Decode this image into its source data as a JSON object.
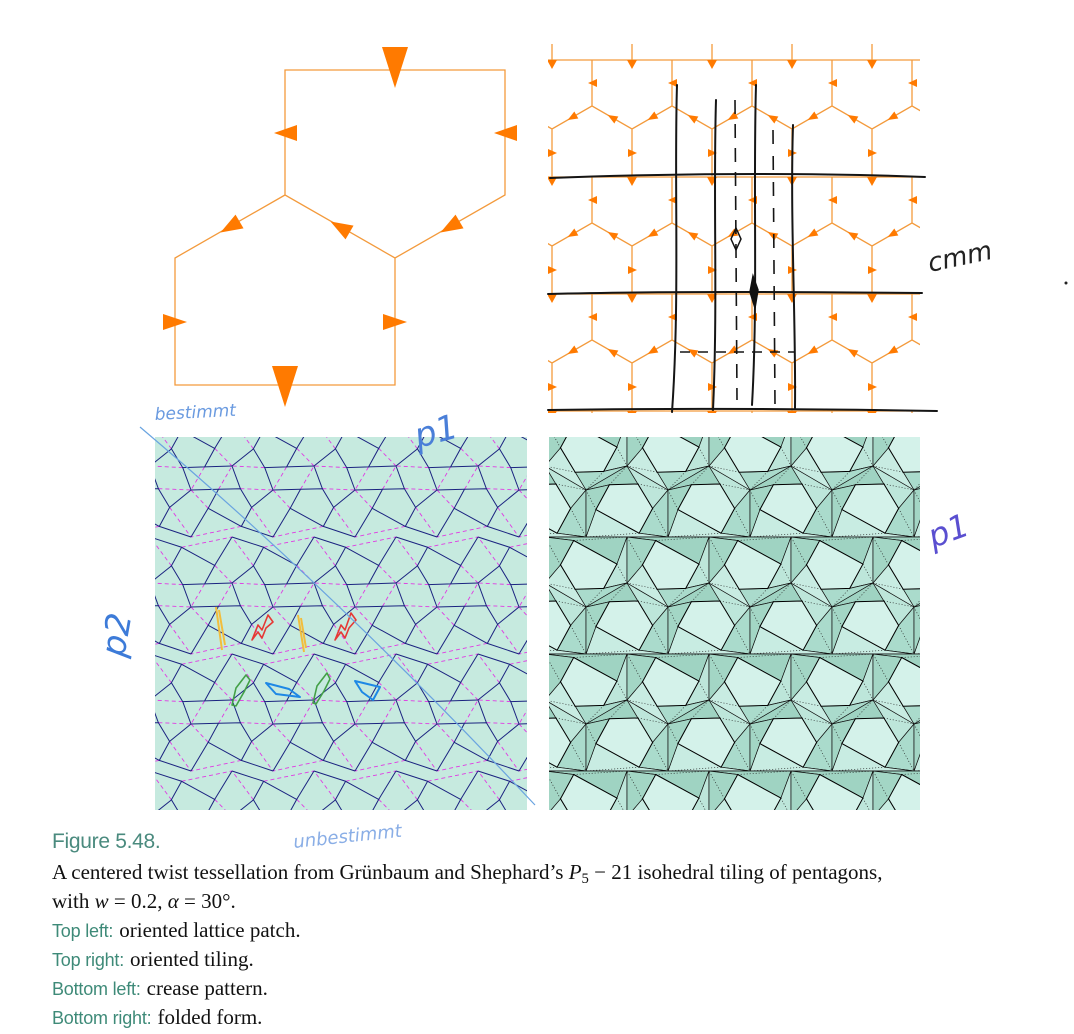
{
  "caption": {
    "figure_label": "Figure 5.48.",
    "line1_before": "A centered twist tessellation from Grünbaum and Shephard’s ",
    "line1_var": "P",
    "line1_sub": "5",
    "line1_after": " − 21 isohedral tiling of pentagons,",
    "line2_a": "with ",
    "line2_w": "w",
    "line2_b": " = 0.2, ",
    "line2_alpha": "α",
    "line2_c": " = 30°.",
    "panels": [
      {
        "label": "Top left:",
        "text": "oriented lattice patch."
      },
      {
        "label": "Top right:",
        "text": "oriented tiling."
      },
      {
        "label": "Bottom left:",
        "text": "crease pattern."
      },
      {
        "label": "Bottom right:",
        "text": "folded form."
      }
    ]
  },
  "annotations": {
    "bestimmt": "bestimmt",
    "p1_top": "p1",
    "p2_left": "p2",
    "p1_right": "p1",
    "unbestimmt": "unbestimmt",
    "cmm": "cmm"
  },
  "colors": {
    "tiling_orange": "#f39a3c",
    "arrow_orange": "#ff7a00",
    "mountain_navy": "#1b2380",
    "valley_magenta": "#e03ae3",
    "paper_mint": "#c6eadf",
    "folded_mint": "#aedccd",
    "label_teal": "#3e8a78",
    "annotation_blue": "#4a7fd8"
  }
}
